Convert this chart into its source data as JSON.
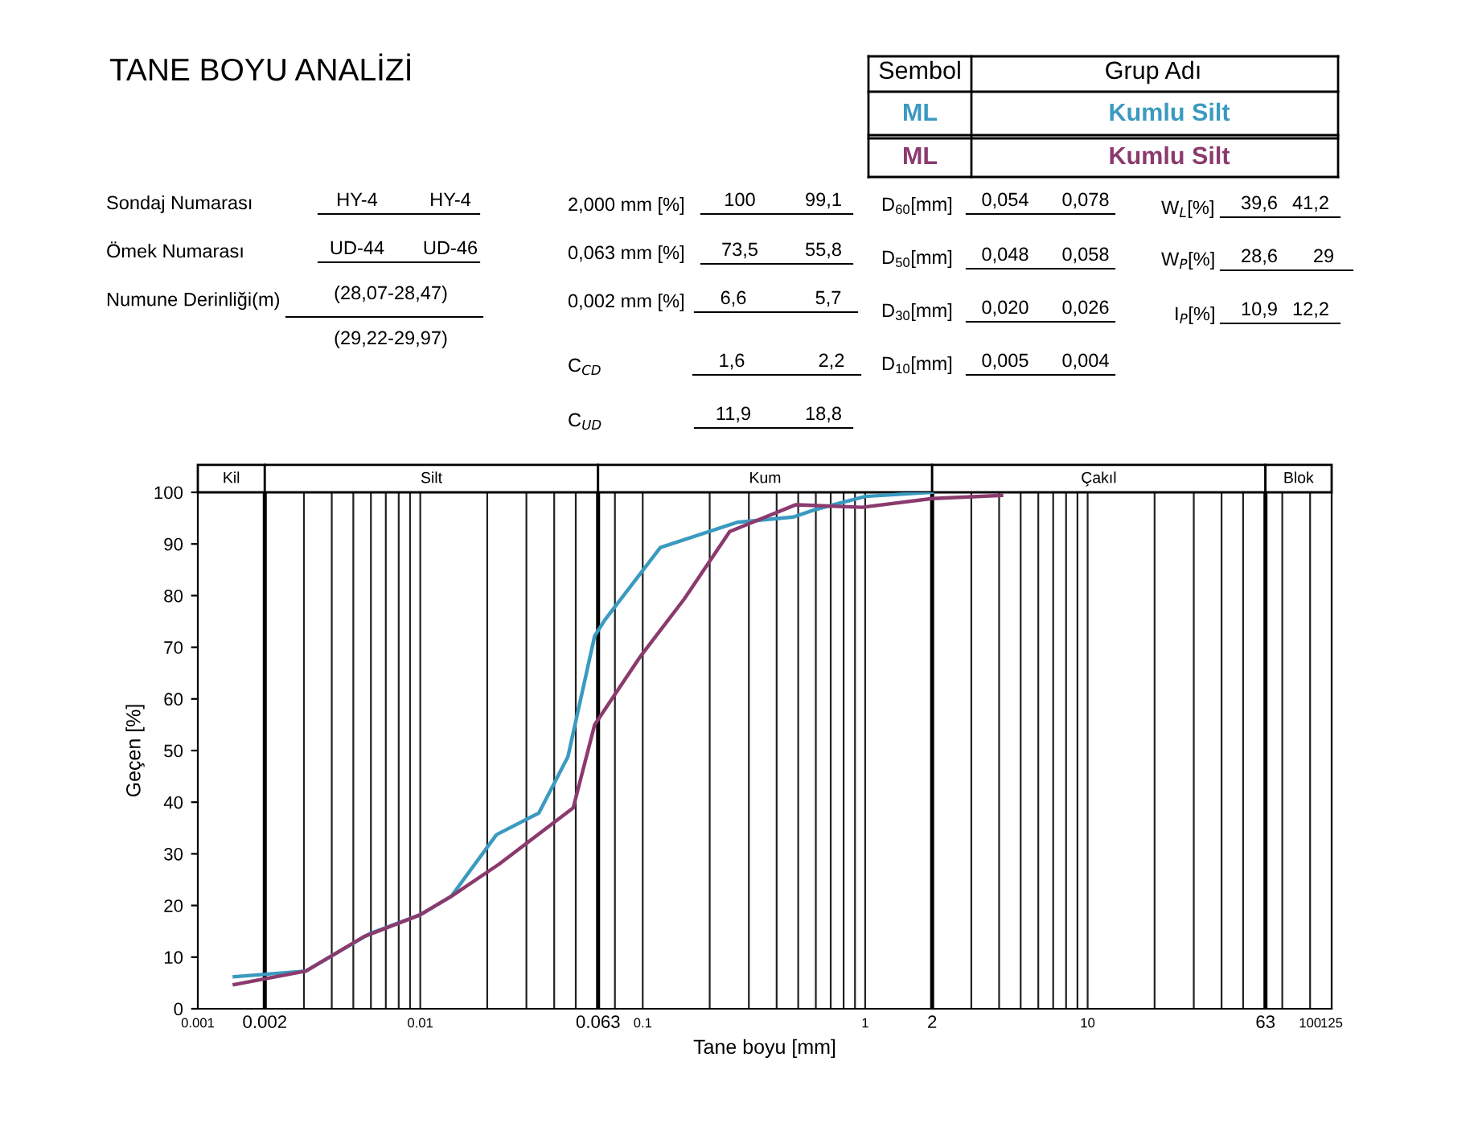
{
  "chart_data": {
    "type": "line",
    "title": "TANE BOYU ANALİZİ",
    "xlabel": "Tane boyu [mm]",
    "ylabel": "Geçen [%]",
    "log": "x",
    "grid": "x",
    "marker": "none",
    "line_style": "solid",
    "xlim": [
      0.001,
      125
    ],
    "ylim": [
      0,
      100
    ],
    "xticks": [
      0.001,
      {
        "value": 0.003,
        "label": null
      },
      {
        "value": 0.004,
        "label": null
      },
      {
        "value": 0.005,
        "label": null
      },
      {
        "value": 0.006,
        "label": null
      },
      {
        "value": 0.007,
        "label": null
      },
      {
        "value": 0.008,
        "label": null
      },
      {
        "value": 0.009,
        "label": null
      },
      0.01,
      {
        "value": 0.02,
        "label": null
      },
      {
        "value": 0.03,
        "label": null
      },
      {
        "value": 0.04,
        "label": null
      },
      {
        "value": 0.05,
        "label": null
      },
      {
        "value": 0.075,
        "label": null
      },
      0.1,
      {
        "value": 0.2,
        "label": null
      },
      {
        "value": 0.3,
        "label": null
      },
      {
        "value": 0.4,
        "label": null
      },
      {
        "value": 0.5,
        "label": null
      },
      {
        "value": 0.6,
        "label": null
      },
      {
        "value": 0.7,
        "label": null
      },
      {
        "value": 0.8,
        "label": null
      },
      {
        "value": 0.9,
        "label": null
      },
      1,
      {
        "value": 3,
        "label": null
      },
      {
        "value": 4,
        "label": null
      },
      {
        "value": 5,
        "label": null
      },
      {
        "value": 6,
        "label": null
      },
      {
        "value": 7,
        "label": null
      },
      {
        "value": 8,
        "label": null
      },
      {
        "value": 9,
        "label": null
      },
      10,
      {
        "value": 20,
        "label": null
      },
      {
        "value": 30,
        "label": null
      },
      {
        "value": 40,
        "label": null
      },
      {
        "value": 50,
        "label": null
      },
      {
        "value": 75,
        "label": null
      },
      100,
      125
    ],
    "yticks": [
      0,
      10,
      20,
      30,
      40,
      50,
      60,
      70,
      80,
      90,
      100
    ],
    "series": [
      {
        "color": "#3a9ac0",
        "x": [
          0.00146,
          0.00306,
          0.0059,
          0.01,
          0.0138,
          0.022,
          0.0341,
          0.0461,
          0.0608,
          0.0676,
          0.12,
          0.267,
          0.474,
          0.59,
          1.0,
          2.0
        ],
        "values": [
          6.2,
          7.3,
          14.5,
          18.2,
          21.8,
          33.7,
          37.9,
          48.8,
          72.2,
          75.3,
          89.3,
          94.2,
          95.2,
          96.6,
          99.2,
          100
        ]
      },
      {
        "color": "#8b3a6e",
        "x": [
          0.00146,
          0.00306,
          0.0056,
          0.01,
          0.0138,
          0.0226,
          0.0487,
          0.0608,
          0.0968,
          0.154,
          0.246,
          0.488,
          0.968,
          2.0,
          4.1
        ],
        "values": [
          4.7,
          7.3,
          14.0,
          18.2,
          21.8,
          28.0,
          38.9,
          55.0,
          68.0,
          79.4,
          92.4,
          97.6,
          97.1,
          98.8,
          99.4
        ]
      }
    ],
    "ref_lines": [
      {
        "axis": "x",
        "value": 0.002,
        "label": "0.002"
      },
      {
        "axis": "x",
        "value": 0.063,
        "label": "0.063"
      },
      {
        "axis": "x",
        "value": 2,
        "label": "2"
      },
      {
        "axis": "x",
        "value": 63,
        "label": "63"
      }
    ],
    "annotations": [
      "Sondaj Numarası",
      "HY-4",
      "HY-4",
      "Ömek Numarası",
      "UD-44",
      "UD-46",
      "Numune Derinliği(m)",
      "(28,07-28,47)",
      "(29,22-29,97)",
      "2,000 mm [%]",
      "100",
      "99,1",
      "0,063 mm [%]",
      "73,5",
      "55,8",
      "0,002 mm [%]",
      "6,6",
      "5,7",
      "C$_{CD}$",
      "1,6",
      "2,2",
      "C$_{UD}$",
      "11,9",
      "18,8",
      "D$_{60}$[mm]",
      "0,054",
      "0,078",
      "D$_{50}$[mm]",
      "0,048",
      "0,058",
      "D$_{30}$[mm]",
      "0,020",
      "0,026",
      "D$_{10}$[mm]",
      "0,005",
      "0,004",
      "W$_{L}$[%]",
      "39,6",
      "41,2",
      "W$_{P}$[%]",
      "28,6",
      "29",
      "I$_{P}$[%]",
      "10,9",
      "12,2",
      "Sembol",
      "Grup Adı",
      "ML",
      "Kumlu Silt",
      "ML",
      "Kumlu Silt",
      "Kil",
      "Silt",
      "Kum",
      "Çakıl",
      "Blok"
    ]
  }
}
